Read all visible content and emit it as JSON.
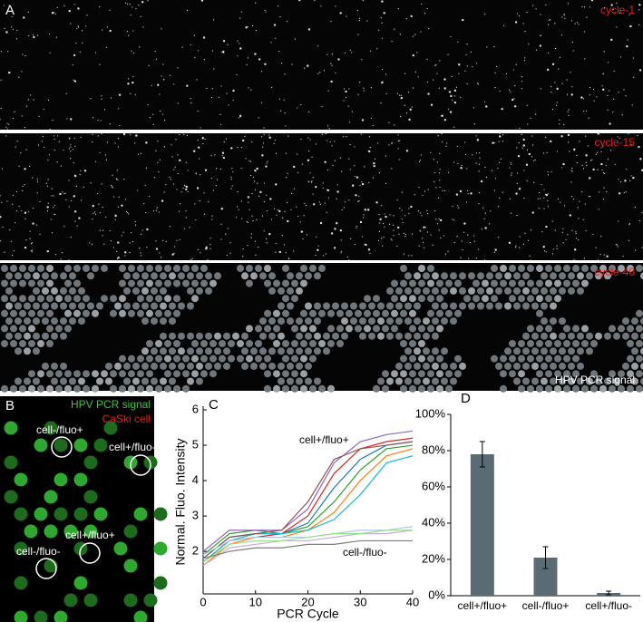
{
  "panels": {
    "a": {
      "label": "A",
      "strips": [
        "cycle-1",
        "cycle-15",
        "cycle-40"
      ],
      "signal": "HPV PCR signal"
    },
    "b": {
      "label": "B",
      "legend": [
        "HPV PCR signal",
        "CaSki cell"
      ],
      "annotations": [
        "cell-/fluo+",
        "cell+/fluo-",
        "cell+/fluo+",
        "cell-/fluo-"
      ]
    }
  },
  "chart_data": [
    {
      "type": "line",
      "panel": "C",
      "x_label": "PCR Cycle",
      "y_label": "Normal. Fluo. Intensity",
      "annotations": [
        "cell+/fluo+",
        "cell-/fluo-"
      ],
      "x": [
        0,
        5,
        10,
        15,
        20,
        25,
        30,
        35,
        40
      ],
      "xlim": [
        0,
        40
      ],
      "xticks": [
        0,
        10,
        20,
        30,
        40
      ],
      "ylim": [
        0.8,
        6
      ],
      "yticks": [
        2,
        3,
        4,
        5,
        6
      ],
      "series": [
        {
          "color": "#1f77b4",
          "values": [
            1.8,
            2.4,
            2.5,
            2.5,
            2.8,
            3.8,
            4.6,
            5.0,
            5.1
          ]
        },
        {
          "color": "#d62728",
          "values": [
            1.7,
            2.3,
            2.4,
            2.5,
            3.0,
            4.2,
            4.9,
            5.1,
            5.2
          ]
        },
        {
          "color": "#2ca02c",
          "values": [
            1.9,
            2.5,
            2.6,
            2.5,
            2.7,
            3.4,
            4.3,
            4.9,
            5.0
          ]
        },
        {
          "color": "#ff7f0e",
          "values": [
            1.6,
            2.2,
            2.4,
            2.4,
            2.6,
            3.1,
            4.0,
            4.7,
            4.9
          ]
        },
        {
          "color": "#9467bd",
          "values": [
            2.0,
            2.6,
            2.6,
            2.6,
            3.2,
            4.5,
            5.1,
            5.3,
            5.4
          ]
        },
        {
          "color": "#17becf",
          "values": [
            1.7,
            2.3,
            2.5,
            2.5,
            2.6,
            2.9,
            3.6,
            4.5,
            4.7
          ]
        },
        {
          "color": "#8c564b",
          "values": [
            1.8,
            2.4,
            2.5,
            2.6,
            3.4,
            4.6,
            4.9,
            5.0,
            5.1
          ]
        },
        {
          "color": "#aec7e8",
          "values": [
            1.9,
            2.3,
            2.4,
            2.4,
            2.4,
            2.5,
            2.6,
            2.6,
            2.7
          ]
        },
        {
          "color": "#c5b0d5",
          "values": [
            1.6,
            2.1,
            2.2,
            2.3,
            2.3,
            2.4,
            2.5,
            2.5,
            2.6
          ]
        },
        {
          "color": "#98df8a",
          "values": [
            1.7,
            2.2,
            2.3,
            2.3,
            2.4,
            2.5,
            2.5,
            2.6,
            2.6
          ]
        },
        {
          "color": "#7f7f7f",
          "values": [
            1.8,
            2.0,
            2.1,
            2.1,
            2.2,
            2.2,
            2.3,
            2.3,
            2.3
          ]
        }
      ]
    },
    {
      "type": "bar",
      "panel": "D",
      "color": "#5b6b73",
      "categories": [
        "cell+/fluo+",
        "cell-/fluo+",
        "cell+/fluo-"
      ],
      "values": [
        78,
        21,
        1.5
      ],
      "errors": [
        7,
        6,
        1
      ],
      "ylim": [
        0,
        100
      ],
      "yticks": [
        {
          "value": 0,
          "label": "0%"
        },
        {
          "value": 20,
          "label": "20%"
        },
        {
          "value": 40,
          "label": "40%"
        },
        {
          "value": 60,
          "label": "60%"
        },
        {
          "value": 80,
          "label": "80%"
        },
        {
          "value": 100,
          "label": "100%"
        }
      ]
    }
  ]
}
